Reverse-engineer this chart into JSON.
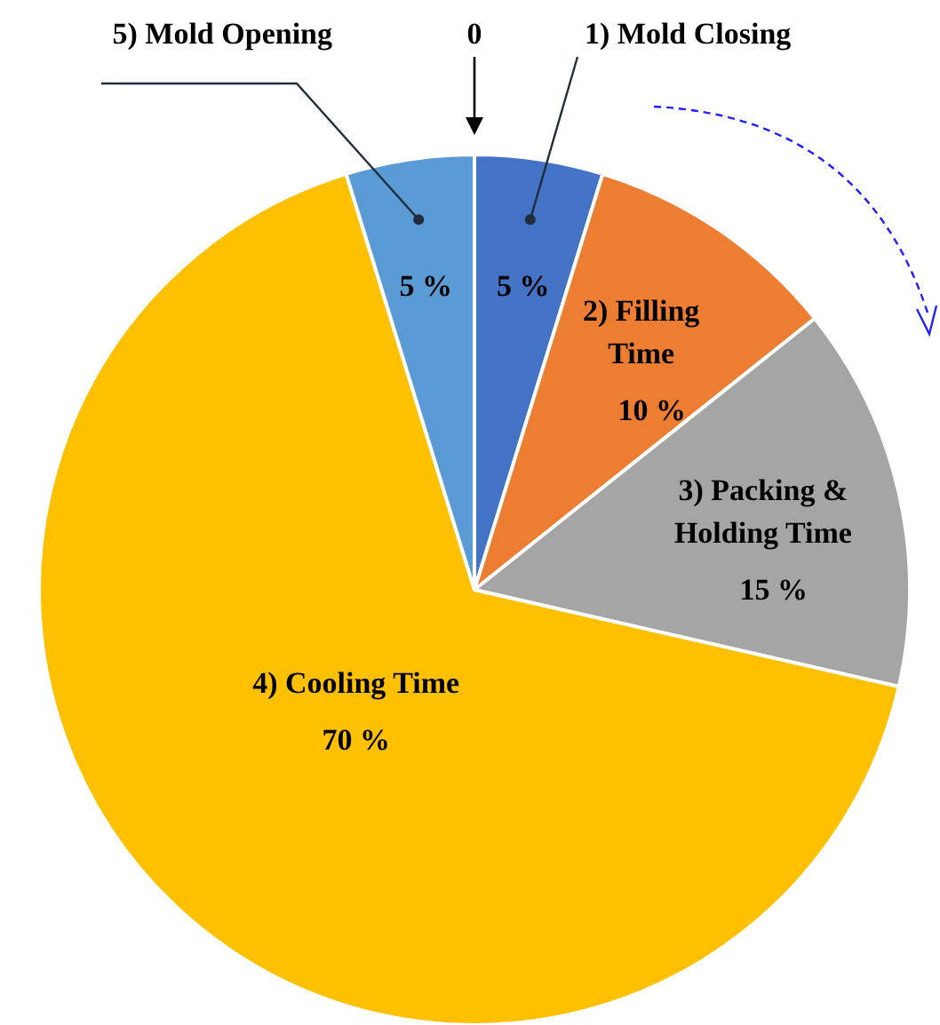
{
  "chart_data": {
    "type": "pie",
    "categories": [
      "1) Mold Closing",
      "2) Filling Time",
      "3) Packing & Holding Time",
      "4) Cooling Time",
      "5) Mold Opening"
    ],
    "values": [
      5,
      10,
      15,
      70,
      5
    ],
    "value_labels": [
      "5 %",
      "10 %",
      "15 %",
      "70 %",
      "5 %"
    ],
    "colors": [
      "#4472c4",
      "#ed7d31",
      "#a5a5a5",
      "#ffc000",
      "#5b9bd5"
    ],
    "annotations": [
      "0"
    ],
    "legend": false
  }
}
